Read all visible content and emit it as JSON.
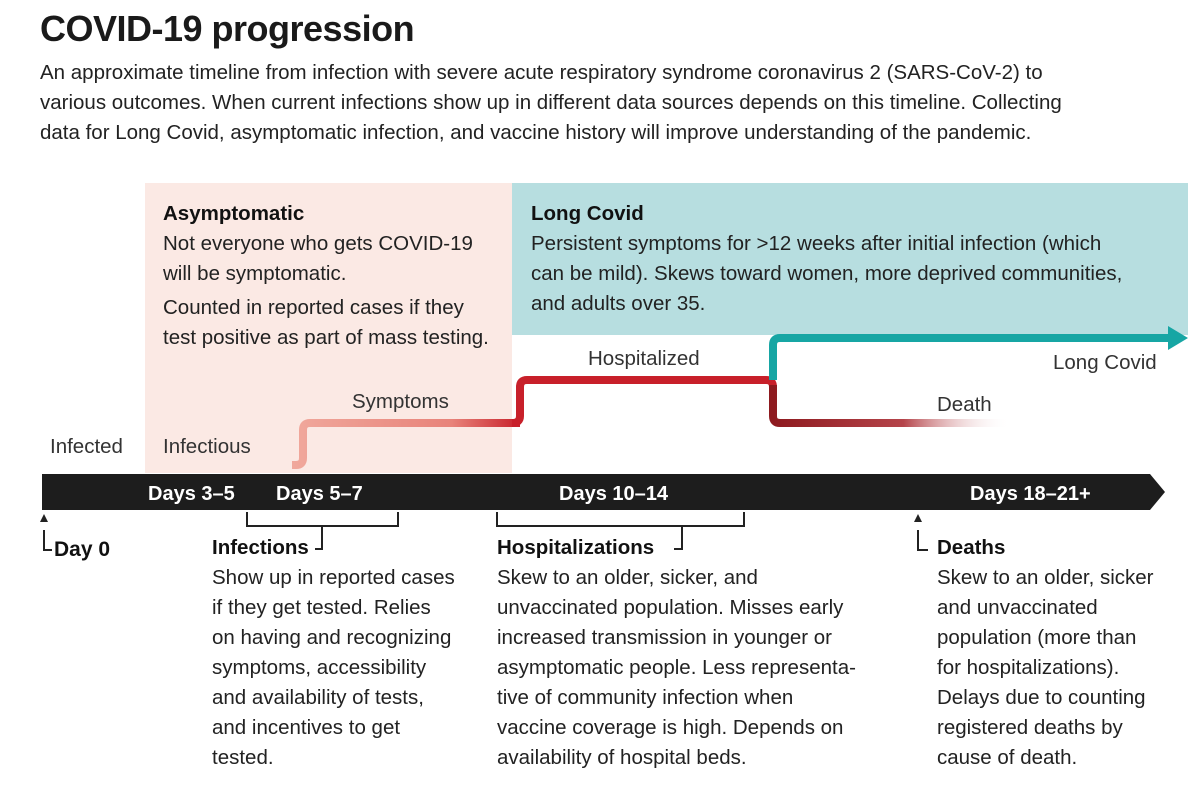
{
  "title": "COVID-19 progression",
  "subtitle_lines": [
    "An approximate timeline from infection with severe acute respiratory syndrome coronavirus 2 (SARS-CoV-2) to",
    "various outcomes. When current infections show up in different data sources depends on this timeline. Collecting",
    "data for Long Covid, asymptomatic infection, and vaccine history will improve understanding of the pandemic."
  ],
  "asymptomatic": {
    "heading": "Asymptomatic",
    "lines": [
      "Not everyone who gets COVID-19",
      "will be symptomatic.",
      "Counted in reported cases if they",
      "test positive as part of mass testing."
    ]
  },
  "long_covid_box": {
    "heading": "Long Covid",
    "lines": [
      "Persistent symptoms for >12 weeks after initial infection (which",
      "can be mild). Skews toward women, more deprived communities,",
      "and adults over 35."
    ]
  },
  "stages": {
    "infected": "Infected",
    "infectious": "Infectious",
    "symptoms": "Symptoms",
    "hospitalized": "Hospitalized",
    "long_covid": "Long Covid",
    "death": "Death"
  },
  "timeline": {
    "days_3_5": "Days 3–5",
    "days_5_7": "Days 5–7",
    "days_10_14": "Days 10–14",
    "days_18_21": "Days 18–21+"
  },
  "day0": "Day 0",
  "notes": {
    "infections": {
      "heading": "Infections",
      "lines": [
        "Show up in reported cases",
        "if they get tested. Relies",
        "on having and recognizing",
        "symptoms, accessibility",
        "and availability of tests,",
        "and incentives to get",
        "tested."
      ]
    },
    "hospitalizations": {
      "heading": "Hospitalizations",
      "lines": [
        "Skew to an older, sicker, and",
        "unvaccinated population. Misses early",
        "increased transmission in younger or",
        "asymptomatic people. Less representa-",
        "tive of community infection when",
        "vaccine coverage is high. Depends on",
        "availability of hospital beds."
      ]
    },
    "deaths": {
      "heading": "Deaths",
      "lines": [
        "Skew to an older, sicker",
        "and unvaccinated",
        "population (more than",
        "for hospitalizations).",
        "Delays due to counting",
        "registered deaths by",
        "cause of death."
      ]
    }
  },
  "colors": {
    "asymptomatic_bg": "#fbe9e4",
    "long_covid_bg": "#b7dee0",
    "infected_line": "#c9c9c9",
    "symptoms_line": "#e8837a",
    "hospital_line": "#c8202a",
    "long_covid_line": "#17a6a4",
    "death_line": "#8e1a1f",
    "timeline_bar": "#1d1d1d"
  }
}
